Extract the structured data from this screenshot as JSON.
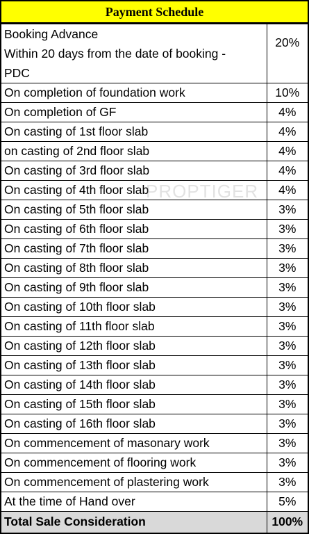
{
  "title": "Payment Schedule",
  "first_row": {
    "lines": [
      "Booking Advance",
      "Within 20 days from the date of booking -",
      "PDC"
    ],
    "percent": "20%"
  },
  "rows": [
    {
      "label": "On completion of foundation work",
      "percent": "10%"
    },
    {
      "label": "On completion of GF",
      "percent": "4%"
    },
    {
      "label": "On casting of 1st floor slab",
      "percent": "4%"
    },
    {
      "label": "on casting of 2nd floor slab",
      "percent": "4%"
    },
    {
      "label": "On casting of 3rd floor slab",
      "percent": "4%"
    },
    {
      "label": "On casting of 4th floor slab",
      "percent": "4%"
    },
    {
      "label": "On casting of 5th floor slab",
      "percent": "3%"
    },
    {
      "label": "On casting of 6th floor slab",
      "percent": "3%"
    },
    {
      "label": "On casting of 7th floor slab",
      "percent": "3%"
    },
    {
      "label": "On casting of 8th floor slab",
      "percent": "3%"
    },
    {
      "label": "On casting of 9th floor slab",
      "percent": "3%"
    },
    {
      "label": "On casting of 10th floor slab",
      "percent": "3%"
    },
    {
      "label": "On casting of 11th floor slab",
      "percent": "3%"
    },
    {
      "label": "On casting of 12th floor slab",
      "percent": "3%"
    },
    {
      "label": "On casting of 13th floor slab",
      "percent": "3%"
    },
    {
      "label": "On casting of 14th floor slab",
      "percent": "3%"
    },
    {
      "label": "On casting of 15th floor slab",
      "percent": "3%"
    },
    {
      "label": "On casting of 16th floor slab",
      "percent": "3%"
    },
    {
      "label": "On commencement of masonary work",
      "percent": "3%"
    },
    {
      "label": "On commencement of flooring work",
      "percent": "3%"
    },
    {
      "label": "On commencement of plastering work",
      "percent": "3%"
    },
    {
      "label": "At the time of Hand over",
      "percent": "5%"
    }
  ],
  "total": {
    "label": "Total Sale Consideration",
    "percent": "100%"
  },
  "watermark": "PROPTIGER",
  "colors": {
    "header_bg": "#ffff00",
    "total_bg": "#d9d9d9",
    "border": "#000000"
  }
}
